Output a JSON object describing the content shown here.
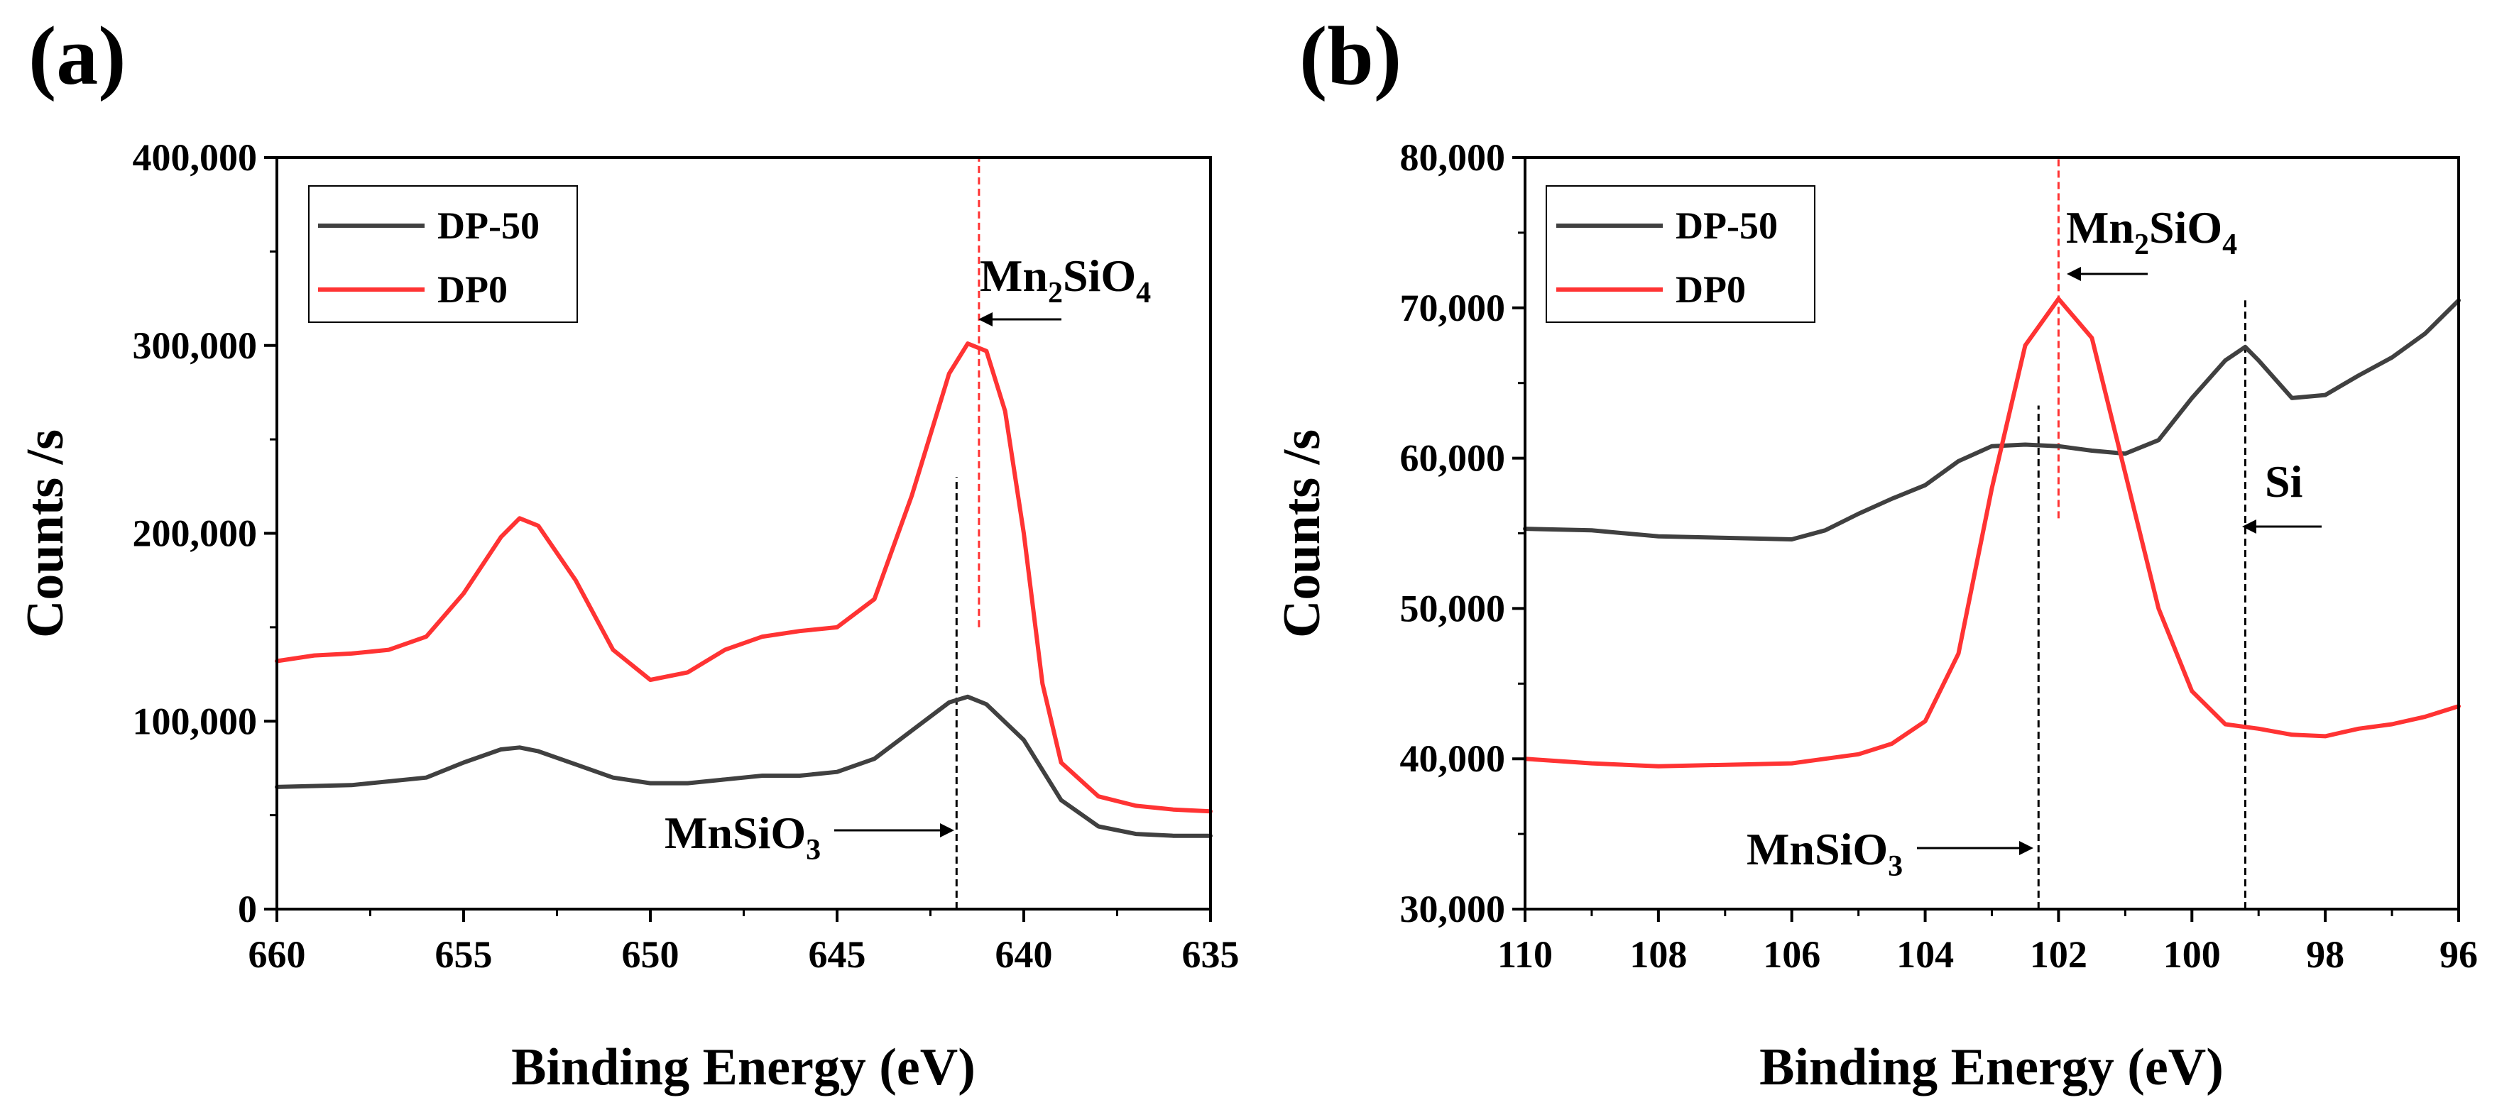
{
  "chart_data": [
    {
      "panel": "(a)",
      "type": "line",
      "xlabel": "Binding Energy (eV)",
      "ylabel": "Counts /s",
      "xlim": [
        660,
        635
      ],
      "ylim": [
        0,
        400000
      ],
      "xticks": [
        660,
        655,
        650,
        645,
        640,
        635
      ],
      "yticks": [
        0,
        100000,
        200000,
        300000,
        400000
      ],
      "xtick_labels": [
        "660",
        "655",
        "650",
        "645",
        "640",
        "635"
      ],
      "ytick_labels": [
        "0",
        "100,000",
        "200,000",
        "300,000",
        "400,000"
      ],
      "legend": [
        "DP-50",
        "DP0"
      ],
      "series": [
        {
          "name": "DP-50",
          "color": "#404040",
          "x": [
            660,
            658,
            656,
            655,
            654,
            653.5,
            653,
            652,
            651,
            650,
            649,
            648,
            647,
            646,
            645,
            644,
            643,
            642,
            641.5,
            641,
            640,
            639,
            638,
            637,
            636,
            635
          ],
          "y": [
            65000,
            66000,
            70000,
            78000,
            85000,
            86000,
            84000,
            77000,
            70000,
            67000,
            67000,
            69000,
            71000,
            71000,
            73000,
            80000,
            95000,
            110000,
            113000,
            109000,
            90000,
            58000,
            44000,
            40000,
            39000,
            39000
          ]
        },
        {
          "name": "DP0",
          "color": "#ff3333",
          "x": [
            660,
            659,
            658,
            657,
            656,
            655,
            654,
            653.5,
            653,
            652,
            651,
            650,
            649,
            648,
            647,
            646,
            645,
            644,
            643,
            642,
            641.5,
            641,
            640.5,
            640,
            639.5,
            639,
            638,
            637,
            636,
            635
          ],
          "y": [
            132000,
            135000,
            136000,
            138000,
            145000,
            168000,
            198000,
            208000,
            204000,
            175000,
            138000,
            122000,
            126000,
            138000,
            145000,
            148000,
            150000,
            165000,
            220000,
            285000,
            301000,
            297000,
            265000,
            200000,
            120000,
            78000,
            60000,
            55000,
            53000,
            52000
          ]
        }
      ],
      "reference_lines": [
        {
          "x": 641.2,
          "color": "#ff3333",
          "y_from": 150000,
          "y_to": 400000
        },
        {
          "x": 641.8,
          "color": "#000000",
          "y_from": 0,
          "y_to": 230000
        }
      ],
      "annotations": [
        {
          "text": "Mn",
          "sub": "2",
          "tail": "SiO",
          "sub2": "4",
          "label": "Mn2SiO4"
        },
        {
          "text": "MnSiO",
          "sub": "3",
          "label": "MnSiO3"
        }
      ]
    },
    {
      "panel": "(b)",
      "type": "line",
      "xlabel": "Binding Energy (eV)",
      "ylabel": "Counts /s",
      "xlim": [
        110,
        96
      ],
      "ylim": [
        30000,
        80000
      ],
      "xticks": [
        110,
        108,
        106,
        104,
        102,
        100,
        98,
        96
      ],
      "yticks": [
        30000,
        40000,
        50000,
        60000,
        70000,
        80000
      ],
      "xtick_labels": [
        "110",
        "108",
        "106",
        "104",
        "102",
        "100",
        "98",
        "96"
      ],
      "ytick_labels": [
        "30,000",
        "40,000",
        "50,000",
        "60,000",
        "70,000",
        "80,000"
      ],
      "legend": [
        "DP-50",
        "DP0"
      ],
      "series": [
        {
          "name": "DP-50",
          "color": "#404040",
          "x": [
            110,
            109,
            108,
            107,
            106,
            105.5,
            105,
            104.5,
            104,
            103.5,
            103,
            102.5,
            102,
            101.5,
            101,
            100.5,
            100,
            99.5,
            99.2,
            99,
            98.5,
            98,
            97.5,
            97,
            96.5,
            96
          ],
          "y": [
            55300,
            55200,
            54800,
            54700,
            54600,
            55200,
            56300,
            57300,
            58200,
            59800,
            60800,
            60900,
            60800,
            60500,
            60300,
            61200,
            64000,
            66500,
            67400,
            66500,
            64000,
            64200,
            65500,
            66700,
            68300,
            70500
          ]
        },
        {
          "name": "DP0",
          "color": "#ff3333",
          "x": [
            110,
            109,
            108,
            107,
            106,
            105.5,
            105,
            104.5,
            104,
            103.5,
            103,
            102.5,
            102,
            101.5,
            101,
            100.5,
            100,
            99.5,
            99,
            98.5,
            98,
            97.5,
            97,
            96.5,
            96
          ],
          "y": [
            40000,
            39700,
            39500,
            39600,
            39700,
            40000,
            40300,
            41000,
            42500,
            47000,
            58000,
            67500,
            70600,
            68000,
            59000,
            50000,
            44500,
            42300,
            42000,
            41600,
            41500,
            42000,
            42300,
            42800,
            43500
          ]
        }
      ],
      "reference_lines": [
        {
          "x": 102.0,
          "color": "#ff3333",
          "y_from": 56000,
          "y_to": 80000
        },
        {
          "x": 102.3,
          "color": "#000000",
          "y_from": 30000,
          "y_to": 63500
        },
        {
          "x": 99.2,
          "color": "#000000",
          "y_from": 30000,
          "y_to": 70500
        }
      ],
      "annotations": [
        {
          "text": "Mn",
          "sub": "2",
          "tail": "SiO",
          "sub2": "4",
          "label": "Mn2SiO4"
        },
        {
          "text": "MnSiO",
          "sub": "3",
          "label": "MnSiO3"
        },
        {
          "text": "Si",
          "label": "Si"
        }
      ]
    }
  ]
}
